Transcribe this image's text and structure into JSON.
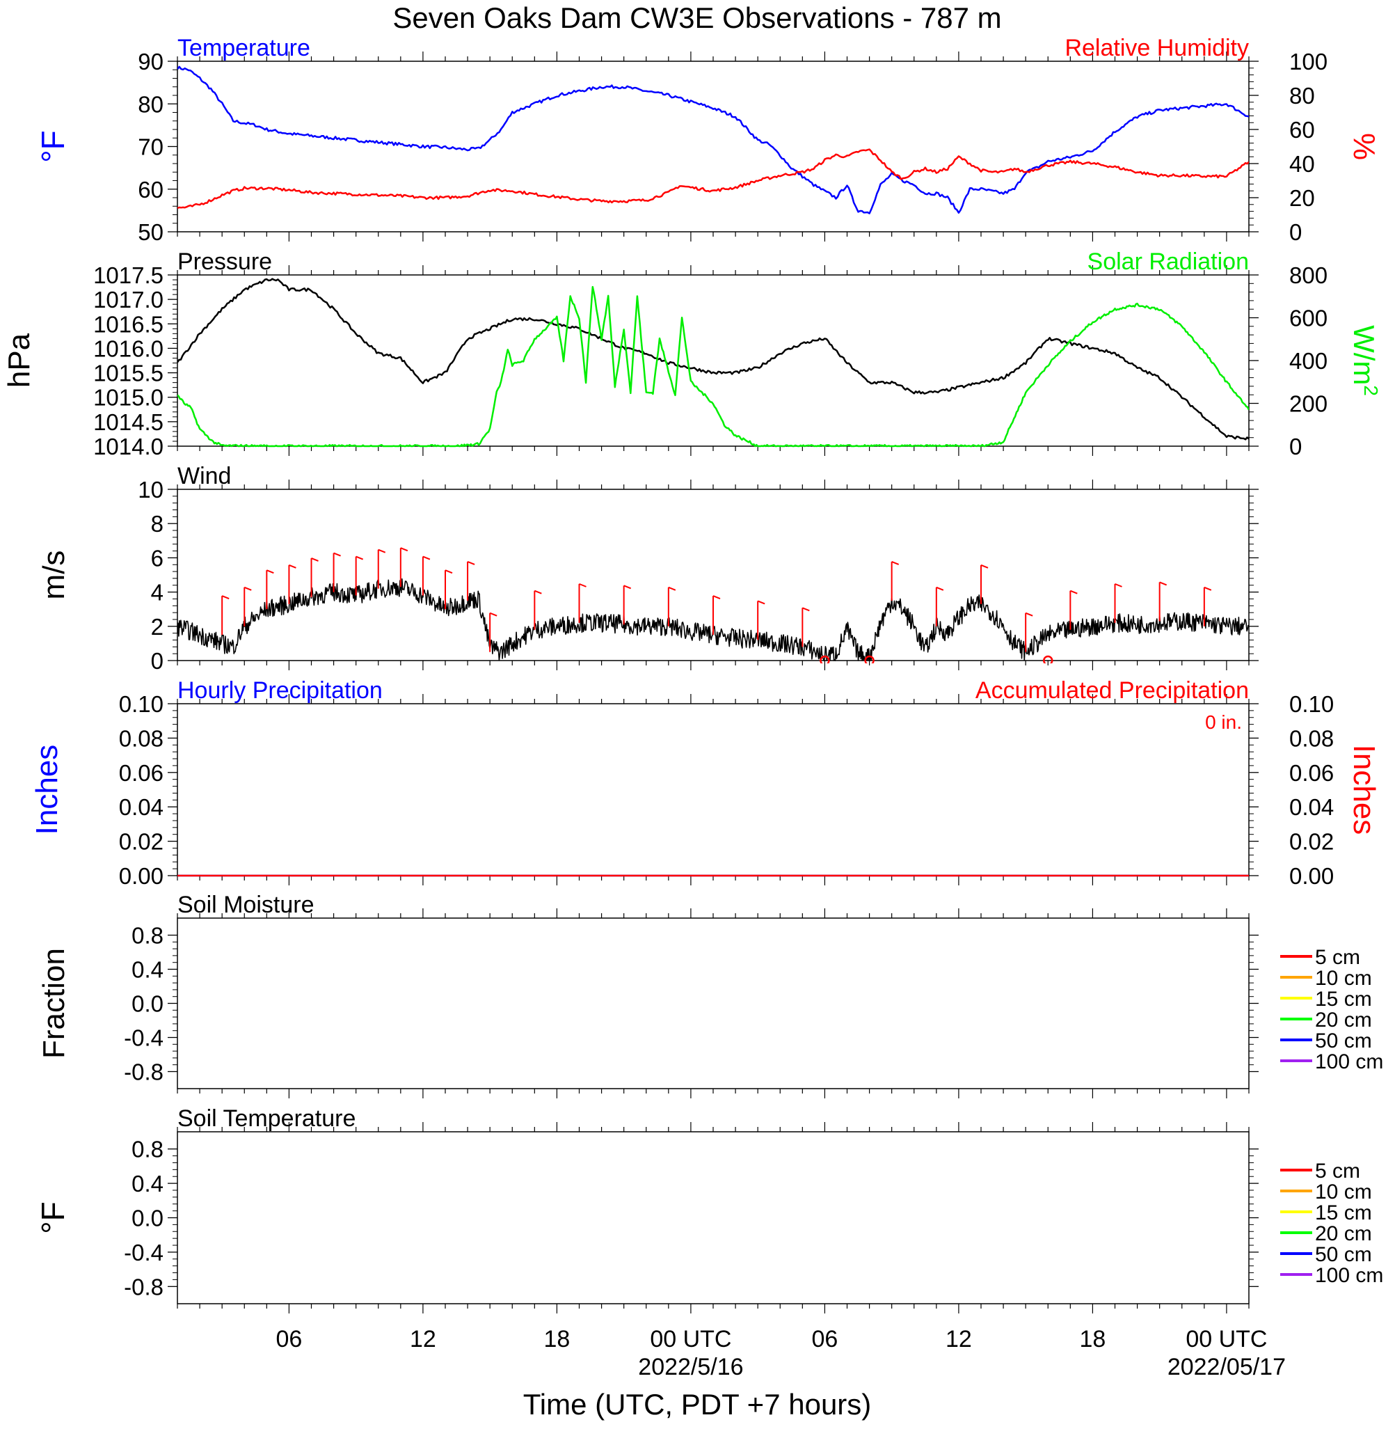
{
  "figure": {
    "title": "Seven Oaks Dam CW3E Observations - 787 m",
    "xlabel": "Time (UTC, PDT +7 hours)",
    "x_ticks": [
      {
        "hour": 6,
        "label": "06",
        "sub": ""
      },
      {
        "hour": 12,
        "label": "12",
        "sub": ""
      },
      {
        "hour": 18,
        "label": "18",
        "sub": ""
      },
      {
        "hour": 24,
        "label": "00 UTC",
        "sub": "2022/5/16"
      },
      {
        "hour": 30,
        "label": "06",
        "sub": ""
      },
      {
        "hour": 36,
        "label": "12",
        "sub": ""
      },
      {
        "hour": 42,
        "label": "18",
        "sub": ""
      },
      {
        "hour": 48,
        "label": "00 UTC",
        "sub": "2022/05/17"
      }
    ],
    "x_range_hours": [
      1,
      49
    ],
    "colors": {
      "temperature": "#0000ff",
      "humidity": "#ff0000",
      "pressure": "#000000",
      "solar": "#00ee00",
      "wind": "#000000",
      "barb": "#ff0000",
      "precip_hourly": "#0000ff",
      "precip_accum": "#ff0000"
    }
  },
  "chart_data": [
    {
      "type": "line",
      "panel": "temperature-humidity",
      "left_title": "Temperature",
      "right_title": "Relative Humidity",
      "ylabel_left": "°F",
      "ylabel_right": "%",
      "ylim_left": [
        50,
        90
      ],
      "ylim_right": [
        0,
        100
      ],
      "yticks_left": [
        "50",
        "60",
        "70",
        "80",
        "90"
      ],
      "yticks_right": [
        "0",
        "20",
        "40",
        "60",
        "80",
        "100"
      ],
      "series": [
        {
          "name": "Temperature",
          "axis": "left",
          "x": [
            1,
            1.5,
            2,
            2.5,
            3,
            3.5,
            4,
            4.5,
            5,
            6,
            7,
            8,
            9,
            10,
            11,
            12,
            13,
            13.5,
            14,
            14.5,
            15,
            15.5,
            16,
            17,
            18,
            19,
            20,
            21,
            22,
            23,
            24,
            25,
            26,
            27,
            27.5,
            28,
            28.5,
            29,
            29.5,
            30,
            30.5,
            31,
            31.3,
            31.5,
            32,
            32.5,
            33,
            33.5,
            34,
            34.5,
            35,
            35.5,
            36,
            36.5,
            37,
            37.5,
            38,
            38.5,
            39,
            39.5,
            40,
            41,
            42,
            43,
            44,
            45,
            46,
            47,
            48,
            49
          ],
          "y": [
            88.5,
            88,
            86,
            83.5,
            80,
            76,
            75.5,
            75,
            74,
            73,
            72.5,
            72,
            71.5,
            71,
            70.5,
            70,
            69.8,
            69.5,
            69.3,
            69.5,
            71.5,
            74,
            78,
            80,
            82,
            83,
            84,
            84,
            83,
            82,
            80.5,
            79,
            77,
            71.5,
            70.5,
            68,
            65,
            63,
            61,
            59.5,
            58,
            61,
            57,
            55,
            54.5,
            61,
            63.5,
            62,
            61,
            59,
            59,
            58,
            54.5,
            60,
            60,
            59.5,
            59,
            60,
            64,
            65,
            66.5,
            67.5,
            69,
            73.5,
            77,
            78.5,
            79,
            79.5,
            80,
            77
          ]
        },
        {
          "name": "Relative Humidity",
          "axis": "right",
          "x": [
            1,
            1.5,
            2,
            2.5,
            3,
            3.5,
            4,
            5,
            6,
            7,
            8,
            9,
            10,
            11,
            12,
            13,
            14,
            15,
            16,
            17,
            18,
            19,
            20,
            21,
            22,
            23,
            23.5,
            24,
            25,
            26,
            27,
            28,
            28.5,
            29,
            29.5,
            30,
            30.5,
            31,
            31.5,
            32,
            32.5,
            33,
            33.5,
            34,
            34.5,
            35,
            35.5,
            36,
            36.5,
            37,
            37.5,
            38,
            38.5,
            39,
            39.5,
            40,
            41,
            42,
            43,
            44,
            45,
            46,
            47,
            48,
            49
          ],
          "y": [
            14,
            14.5,
            16,
            18.5,
            21.5,
            24,
            25.5,
            25.5,
            24.5,
            23,
            22.5,
            22,
            21.5,
            21,
            20,
            20,
            21,
            24.5,
            24,
            22,
            20.5,
            19,
            18,
            18,
            18.5,
            23,
            27,
            26,
            24,
            26,
            30,
            33,
            34,
            35,
            37,
            42,
            45,
            44,
            47,
            48,
            42,
            35,
            31,
            35,
            37,
            35,
            37,
            44,
            40,
            36,
            35,
            35,
            37,
            35,
            37,
            39,
            41,
            40,
            38,
            35,
            33,
            33,
            32.5,
            32.5,
            41
          ]
        }
      ]
    },
    {
      "type": "line",
      "panel": "pressure-solar",
      "left_title": "Pressure",
      "right_title": "Solar Radiation",
      "ylabel_left": "hPa",
      "ylabel_right": "W/m",
      "ylabel_right_sup": "2",
      "ylim_left": [
        1014.0,
        1017.5
      ],
      "ylim_right": [
        0,
        800
      ],
      "yticks_left": [
        "1014.0",
        "1014.5",
        "1015.0",
        "1015.5",
        "1016.0",
        "1016.5",
        "1017.0",
        "1017.5"
      ],
      "yticks_right": [
        "0",
        "200",
        "400",
        "600",
        "800"
      ],
      "series": [
        {
          "name": "Pressure",
          "axis": "left",
          "x": [
            1,
            2,
            3,
            4,
            5,
            5.5,
            6,
            7,
            8,
            9,
            10,
            11,
            12,
            13,
            14,
            15,
            16,
            17,
            18,
            19,
            20,
            21,
            22,
            23,
            24,
            25,
            26,
            27,
            28,
            29,
            30,
            31,
            32,
            33,
            34,
            35,
            36,
            37,
            38,
            39,
            40,
            41,
            42,
            43,
            44,
            45,
            46,
            47,
            48,
            49
          ],
          "y": [
            1015.7,
            1016.3,
            1016.8,
            1017.2,
            1017.4,
            1017.4,
            1017.2,
            1017.2,
            1016.8,
            1016.3,
            1015.9,
            1015.8,
            1015.3,
            1015.5,
            1016.2,
            1016.4,
            1016.6,
            1016.6,
            1016.5,
            1016.4,
            1016.2,
            1016.0,
            1015.9,
            1015.7,
            1015.6,
            1015.5,
            1015.5,
            1015.6,
            1015.9,
            1016.1,
            1016.2,
            1015.7,
            1015.3,
            1015.3,
            1015.1,
            1015.1,
            1015.2,
            1015.3,
            1015.4,
            1015.7,
            1016.2,
            1016.1,
            1016.0,
            1015.9,
            1015.6,
            1015.4,
            1015.0,
            1014.6,
            1014.2,
            1014.15
          ]
        },
        {
          "name": "Solar Radiation",
          "axis": "right",
          "x": [
            1,
            1.3,
            1.6,
            2,
            2.3,
            2.6,
            3,
            5,
            8,
            12,
            13.5,
            14.5,
            15,
            15.3,
            15.5,
            15.8,
            16,
            16.5,
            17,
            17.5,
            18,
            18.3,
            18.6,
            19,
            19.3,
            19.6,
            20,
            20.3,
            20.6,
            21,
            21.3,
            21.6,
            22,
            22.3,
            22.6,
            23,
            23.3,
            23.6,
            24,
            24.5,
            25,
            25.5,
            26,
            27,
            30,
            34,
            37,
            38,
            39,
            40,
            41,
            42,
            43,
            44,
            45,
            46,
            47,
            48,
            49
          ],
          "y": [
            240,
            200,
            180,
            80,
            50,
            20,
            2,
            0,
            0,
            0,
            0,
            10,
            80,
            250,
            300,
            450,
            380,
            400,
            500,
            550,
            600,
            400,
            700,
            600,
            300,
            750,
            500,
            700,
            280,
            550,
            250,
            700,
            250,
            250,
            500,
            350,
            240,
            600,
            300,
            250,
            200,
            100,
            50,
            0,
            0,
            0,
            0,
            20,
            250,
            380,
            490,
            580,
            640,
            660,
            640,
            560,
            440,
            300,
            170
          ]
        }
      ]
    },
    {
      "type": "line",
      "panel": "wind",
      "left_title": "Wind",
      "ylabel_left": "m/s",
      "ylim_left": [
        0,
        10
      ],
      "yticks_left": [
        "0",
        "2",
        "4",
        "6",
        "8",
        "10"
      ],
      "series": [
        {
          "name": "Wind",
          "axis": "left",
          "x": [
            1,
            2,
            3,
            3.5,
            4,
            5,
            6,
            7,
            8,
            9,
            10,
            11,
            12,
            13,
            13.5,
            14,
            14.5,
            15,
            15.5,
            16,
            17,
            18,
            19,
            20,
            21,
            22,
            23,
            24,
            25,
            26,
            27,
            28,
            29,
            30,
            30.5,
            31,
            31.5,
            32,
            32.5,
            33,
            33.5,
            34,
            34.5,
            35,
            35.5,
            36,
            36.5,
            37,
            37.5,
            38,
            38.5,
            39,
            39.5,
            40,
            41,
            42,
            43,
            44,
            45,
            46,
            47,
            48,
            49
          ],
          "y": [
            2,
            1.5,
            1,
            0.8,
            2,
            3,
            3.3,
            3.7,
            4,
            3.8,
            4.2,
            4.3,
            3.8,
            3,
            3.2,
            3.5,
            3.6,
            0.8,
            0.5,
            1,
            1.8,
            2,
            2.2,
            2.2,
            2.1,
            2,
            2,
            1.7,
            1.5,
            1.3,
            1.2,
            1,
            0.8,
            0.3,
            0.4,
            1.8,
            0.4,
            0.2,
            2.2,
            3.5,
            3,
            2,
            0.6,
            2,
            1.6,
            2.5,
            3.2,
            3.3,
            2.8,
            2,
            1,
            0.5,
            1,
            1.5,
            1.8,
            2,
            2.2,
            2.1,
            2.2,
            2.3,
            2.2,
            2,
            2
          ]
        },
        {
          "name": "barbs_points",
          "axis": "left",
          "x": [
            3,
            4,
            5,
            6,
            7,
            8,
            9,
            10,
            11,
            12,
            13,
            14,
            15,
            17,
            19,
            21,
            23,
            25,
            27,
            29,
            33,
            35,
            37,
            39,
            41,
            43,
            45,
            47
          ],
          "y": [
            1.5,
            2,
            3,
            3.3,
            3.7,
            4,
            3.8,
            4.2,
            4.3,
            3.8,
            3,
            3.5,
            0.5,
            1.8,
            2.2,
            2.1,
            2,
            1.5,
            1.2,
            0.8,
            3.5,
            2,
            3.3,
            0.5,
            1.8,
            2.2,
            2.3,
            2
          ]
        },
        {
          "name": "calm_points",
          "axis": "left",
          "x": [
            30,
            32,
            40
          ],
          "y": [
            0,
            0,
            0
          ]
        }
      ]
    },
    {
      "type": "line",
      "panel": "precipitation",
      "left_title": "Hourly Precipitation",
      "right_title": "Accumulated Precipitation",
      "annotation": "0 in.",
      "ylabel_left": "Inches",
      "ylabel_right": "Inches",
      "ylim_left": [
        0,
        0.1
      ],
      "ylim_right": [
        0,
        0.1
      ],
      "yticks_left": [
        "0.00",
        "0.02",
        "0.04",
        "0.06",
        "0.08",
        "0.10"
      ],
      "yticks_right": [
        "0.00",
        "0.02",
        "0.04",
        "0.06",
        "0.08",
        "0.10"
      ],
      "series": [
        {
          "name": "Hourly Precipitation",
          "axis": "left",
          "x": [
            1,
            49
          ],
          "y": [
            0,
            0
          ]
        },
        {
          "name": "Accumulated Precipitation",
          "axis": "right",
          "x": [
            1,
            49
          ],
          "y": [
            0,
            0
          ]
        }
      ]
    },
    {
      "type": "line",
      "panel": "soil-moisture",
      "left_title": "Soil Moisture",
      "ylabel_left": "Fraction",
      "ylim_left": [
        -1,
        1
      ],
      "yticks_left": [
        "-0.8",
        "-0.4",
        "0.0",
        "0.4",
        "0.8"
      ],
      "legend": [
        {
          "label": "5 cm",
          "color": "#ff0000"
        },
        {
          "label": "10 cm",
          "color": "#ffa500"
        },
        {
          "label": "15 cm",
          "color": "#ffff00"
        },
        {
          "label": "20 cm",
          "color": "#00ff00"
        },
        {
          "label": "50 cm",
          "color": "#0000ff"
        },
        {
          "label": "100 cm",
          "color": "#a020f0"
        }
      ],
      "series": []
    },
    {
      "type": "line",
      "panel": "soil-temperature",
      "left_title": "Soil Temperature",
      "ylabel_left": "°F",
      "ylim_left": [
        -1,
        1
      ],
      "yticks_left": [
        "-0.8",
        "-0.4",
        "0.0",
        "0.4",
        "0.8"
      ],
      "legend": [
        {
          "label": "5 cm",
          "color": "#ff0000"
        },
        {
          "label": "10 cm",
          "color": "#ffa500"
        },
        {
          "label": "15 cm",
          "color": "#ffff00"
        },
        {
          "label": "20 cm",
          "color": "#00ff00"
        },
        {
          "label": "50 cm",
          "color": "#0000ff"
        },
        {
          "label": "100 cm",
          "color": "#a020f0"
        }
      ],
      "series": []
    }
  ]
}
